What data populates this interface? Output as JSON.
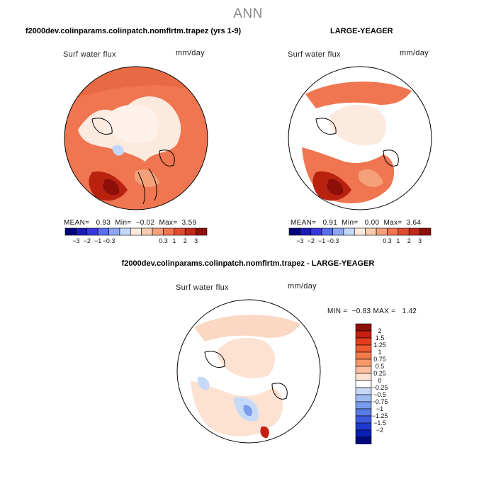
{
  "main_title": "ANN",
  "panels": [
    {
      "title": "f2000dev.colinparams.colinpatch.nomflrtm.trapez (yrs 1-9)",
      "variable": "Surf water flux",
      "units": "mm/day",
      "stats": "MEAN=   0.93  Min=  −0.02  Max=  3.59"
    },
    {
      "title": "LARGE-YEAGER",
      "variable": "Surf water flux",
      "units": "mm/day",
      "stats": "MEAN=   0.91  Min=   0.00  Max=  3.64"
    },
    {
      "title": "f2000dev.colinparams.colinpatch.nomflrtm.trapez - LARGE-YEAGER",
      "variable": "Surf water flux",
      "units": "mm/day",
      "stats": "MIN =  −0.83 MAX =   1.42"
    }
  ],
  "chart_data": [
    {
      "type": "heatmap",
      "projection": "north-polar-stereographic",
      "title": "f2000dev.colinparams.colinpatch.nomflrtm.trapez (yrs 1-9)",
      "variable": "Surf water flux",
      "units": "mm/day",
      "mean": 0.93,
      "min": -0.02,
      "max": 3.59,
      "colorbar": {
        "orientation": "horizontal",
        "tick_labels": [
          "−3",
          "−2",
          "−1",
          "−0.3",
          "0.3",
          "1",
          "2",
          "3"
        ],
        "colors": [
          "#00007d",
          "#1a1ab4",
          "#3737dc",
          "#5a6ef0",
          "#8ca5f5",
          "#c3d7fa",
          "#fdeadf",
          "#f8cbb0",
          "#f4a07a",
          "#ef7650",
          "#e04a30",
          "#c12a18",
          "#8c0f0a"
        ]
      }
    },
    {
      "type": "heatmap",
      "projection": "north-polar-stereographic",
      "title": "LARGE-YEAGER",
      "variable": "Surf water flux",
      "units": "mm/day",
      "mean": 0.91,
      "min": 0.0,
      "max": 3.64,
      "colorbar": {
        "orientation": "horizontal",
        "tick_labels": [
          "−3",
          "−2",
          "−1",
          "−0.3",
          "0.3",
          "1",
          "2",
          "3"
        ],
        "colors": [
          "#00007d",
          "#1a1ab4",
          "#3737dc",
          "#5a6ef0",
          "#8ca5f5",
          "#c3d7fa",
          "#fdeadf",
          "#f8cbb0",
          "#f4a07a",
          "#ef7650",
          "#e04a30",
          "#c12a18",
          "#8c0f0a"
        ]
      }
    },
    {
      "type": "heatmap",
      "projection": "north-polar-stereographic",
      "title": "f2000dev.colinparams.colinpatch.nomflrtm.trapez - LARGE-YEAGER",
      "variable": "Surf water flux",
      "units": "mm/day",
      "min": -0.83,
      "max": 1.42,
      "colorbar": {
        "orientation": "vertical",
        "tick_labels": [
          "2",
          "1.5",
          "1.25",
          "1",
          "0.75",
          "0.5",
          "0.25",
          "0",
          "−0.25",
          "−0.5",
          "−0.75",
          "−1",
          "−1.25",
          "−1.5",
          "−2"
        ],
        "colors": [
          "#8c0f0a",
          "#c81e0f",
          "#e63c1e",
          "#f05a32",
          "#f47a4a",
          "#f89868",
          "#fbbea0",
          "#fde2d2",
          "#ffffff",
          "#c6d9f7",
          "#9fbcf2",
          "#7a9cec",
          "#5a7be6",
          "#3c5ae0",
          "#1e38d2",
          "#0a1eb4",
          "#000a7d"
        ]
      }
    }
  ]
}
